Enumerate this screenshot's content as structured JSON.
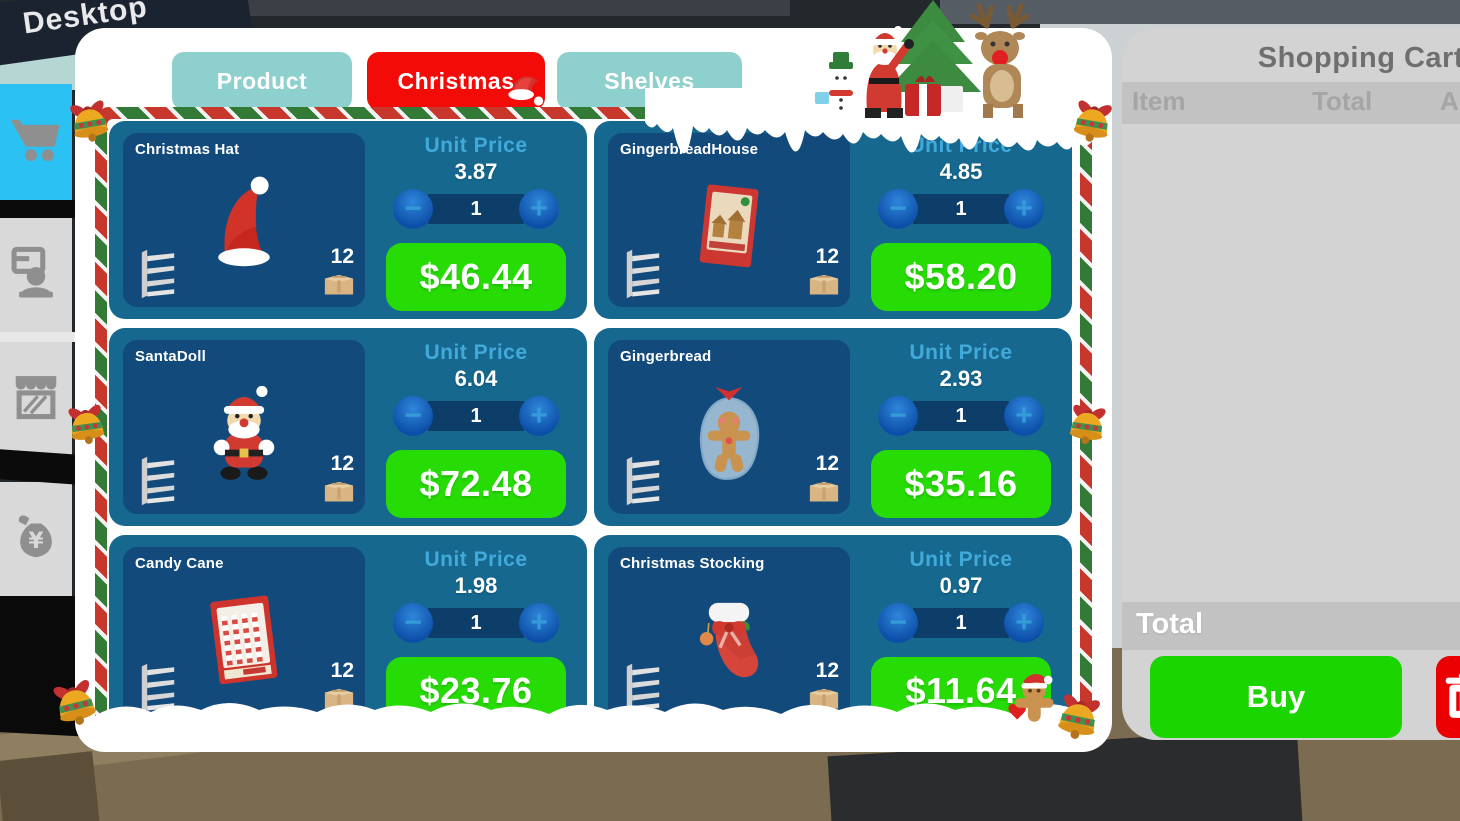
{
  "window": {
    "sign_text": "Desktop"
  },
  "tabs": [
    {
      "label": "Product",
      "active": false
    },
    {
      "label": "Christmas",
      "active": true,
      "icon": "santa-hat-icon"
    },
    {
      "label": "Shelves",
      "active": false
    }
  ],
  "card_labels": {
    "unit_price_label": "Unit Price",
    "minus_glyph": "−",
    "plus_glyph": "+"
  },
  "products": [
    {
      "name": "Christmas Hat",
      "icon": "christmas-hat",
      "unit_price": "3.87",
      "quantity": "1",
      "total": "$46.44",
      "stock": "12"
    },
    {
      "name": "GingerbreadHouse",
      "icon": "gingerbread-house",
      "unit_price": "4.85",
      "quantity": "1",
      "total": "$58.20",
      "stock": "12"
    },
    {
      "name": "SantaDoll",
      "icon": "santa-doll",
      "unit_price": "6.04",
      "quantity": "1",
      "total": "$72.48",
      "stock": "12"
    },
    {
      "name": "Gingerbread",
      "icon": "gingerbread",
      "unit_price": "2.93",
      "quantity": "1",
      "total": "$35.16",
      "stock": "12"
    },
    {
      "name": "Candy Cane",
      "icon": "candy-cane",
      "unit_price": "1.98",
      "quantity": "1",
      "total": "$23.76",
      "stock": "12"
    },
    {
      "name": "Christmas Stocking",
      "icon": "christmas-stocking",
      "unit_price": "0.97",
      "quantity": "1",
      "total": "$11.64",
      "stock": "12"
    }
  ],
  "cart": {
    "title": "Shopping Cart",
    "columns": [
      "Item",
      "Total",
      "A"
    ],
    "total_label": "Total",
    "buy_label": "Buy",
    "trash_icon": "trash-icon"
  },
  "sidebar": {
    "items": [
      {
        "icon": "cart-icon",
        "active": true
      },
      {
        "icon": "staff-icon",
        "active": false
      },
      {
        "icon": "shop-icon",
        "active": false
      },
      {
        "icon": "money-icon",
        "active": false
      }
    ]
  },
  "colors": {
    "tab_active": "#f20b07",
    "tab_inactive": "#8ed0cd",
    "card_bg": "#16688f",
    "card_inner": "#134a7c",
    "unit_label": "#41aadb",
    "price_green": "#27dc05",
    "buy_green": "#1bd501",
    "cart_bg": "#d3d3d3",
    "cart_band": "#c2c2c2",
    "accent_red": "#ea0000",
    "stepper_strip": "#0d3e69"
  }
}
